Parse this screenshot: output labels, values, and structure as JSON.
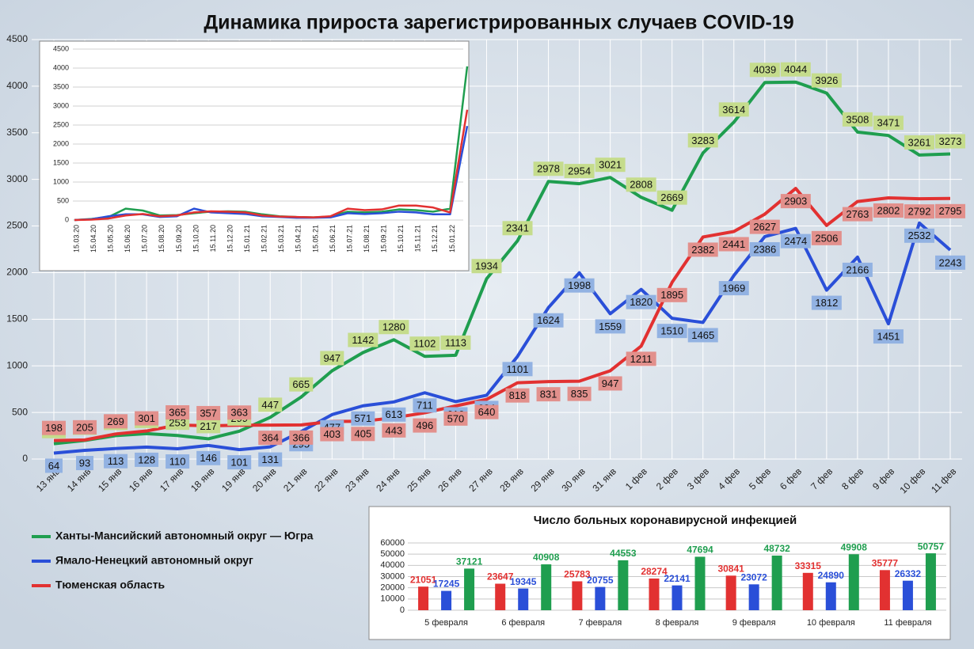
{
  "chart_data": [
    {
      "type": "line",
      "title": "Динамика прироста зарегистрированных случаев COVID-19",
      "categories": [
        "13 янв",
        "14 янв",
        "15 янв",
        "16 янв",
        "17 янв",
        "18 янв",
        "19 янв",
        "20 янв",
        "21 янв",
        "22 янв",
        "23 янв",
        "24 янв",
        "25 янв",
        "26 янв",
        "27 янв",
        "28 янв",
        "29 янв",
        "30 янв",
        "31 янв",
        "1 фев",
        "2 фев",
        "3 фев",
        "4 фев",
        "5 фев",
        "6 фев",
        "7 фев",
        "8 фев",
        "9 фев",
        "10 фев",
        "11 фев"
      ],
      "series": [
        {
          "name": "Ханты-Мансийский автономный округ — Югра",
          "color": "#1f9e4f",
          "label_color": "#c5dc8c",
          "values": [
            164,
            199,
            251,
            273,
            253,
            217,
            299,
            447,
            665,
            947,
            1142,
            1280,
            1102,
            1113,
            1934,
            2341,
            2978,
            2954,
            3021,
            2808,
            2669,
            3283,
            3614,
            4039,
            4044,
            3926,
            3508,
            3471,
            3261,
            3273
          ]
        },
        {
          "name": "Ямало-Ненецкий автономный округ",
          "color": "#2a4fd8",
          "label_color": "#92b2e2",
          "values": [
            64,
            93,
            113,
            128,
            110,
            146,
            101,
            131,
            295,
            477,
            571,
            613,
            711,
            616,
            684,
            1101,
            1624,
            1998,
            1559,
            1820,
            1510,
            1465,
            1969,
            2386,
            2474,
            1812,
            2166,
            1451,
            2532,
            2243
          ]
        },
        {
          "name": "Тюменская область",
          "color": "#e23131",
          "label_color": "#e2908c",
          "values": [
            198,
            205,
            269,
            301,
            365,
            357,
            363,
            364,
            366,
            403,
            405,
            443,
            496,
            570,
            640,
            818,
            831,
            835,
            947,
            1211,
            1895,
            2382,
            2441,
            2627,
            2903,
            2506,
            2763,
            2802,
            2792,
            2795
          ]
        }
      ],
      "ylim": [
        0,
        4500
      ],
      "yticks": [
        0,
        500,
        1000,
        1500,
        2000,
        2500,
        3000,
        3500,
        4000,
        4500
      ],
      "grid": true
    },
    {
      "type": "line",
      "categories": [
        "15.03.20",
        "15.04.20",
        "15.05.20",
        "15.06.20",
        "15.07.20",
        "15.08.20",
        "15.09.20",
        "15.10.20",
        "15.11.20",
        "15.12.20",
        "15.01.21",
        "15.02.21",
        "15.03.21",
        "15.04.21",
        "15.05.21",
        "15.06.21",
        "15.07.21",
        "15.08.21",
        "15.09.21",
        "15.10.21",
        "15.11.21",
        "15.12.21",
        "15.01.22",
        null
      ],
      "series": [
        {
          "color": "#1f9e4f",
          "values": [
            0,
            30,
            80,
            300,
            250,
            120,
            130,
            180,
            220,
            230,
            220,
            150,
            100,
            80,
            70,
            90,
            220,
            200,
            220,
            280,
            260,
            220,
            300,
            4044
          ]
        },
        {
          "color": "#2a4fd8",
          "values": [
            0,
            20,
            100,
            150,
            150,
            80,
            100,
            300,
            200,
            180,
            160,
            100,
            80,
            60,
            60,
            70,
            180,
            160,
            180,
            220,
            200,
            150,
            150,
            2474
          ]
        },
        {
          "color": "#e23131",
          "values": [
            0,
            10,
            40,
            120,
            160,
            100,
            120,
            200,
            230,
            220,
            200,
            120,
            90,
            80,
            70,
            100,
            300,
            260,
            280,
            380,
            380,
            330,
            200,
            2903
          ]
        }
      ],
      "ylim": [
        0,
        4500
      ],
      "yticks": [
        0,
        500,
        1000,
        1500,
        2000,
        2500,
        3000,
        3500,
        4000,
        4500
      ],
      "grid": true
    },
    {
      "type": "bar",
      "title": "Число больных коронавирусной  инфекцией",
      "categories": [
        "5 февраля",
        "6 февраля",
        "7 февраля",
        "8 февраля",
        "9 февраля",
        "10 февраля",
        "11 февраля"
      ],
      "series": [
        {
          "color": "#e23131",
          "values": [
            21051,
            23647,
            25783,
            28274,
            30841,
            33315,
            35777
          ]
        },
        {
          "color": "#2a4fd8",
          "values": [
            17245,
            19345,
            20755,
            22141,
            23072,
            24890,
            26332
          ]
        },
        {
          "color": "#1f9e4f",
          "values": [
            37121,
            40908,
            44553,
            47694,
            48732,
            49908,
            50757
          ]
        }
      ],
      "ylim": [
        0,
        60000
      ],
      "yticks": [
        0,
        10000,
        20000,
        30000,
        40000,
        50000,
        60000
      ],
      "grid": true
    }
  ]
}
